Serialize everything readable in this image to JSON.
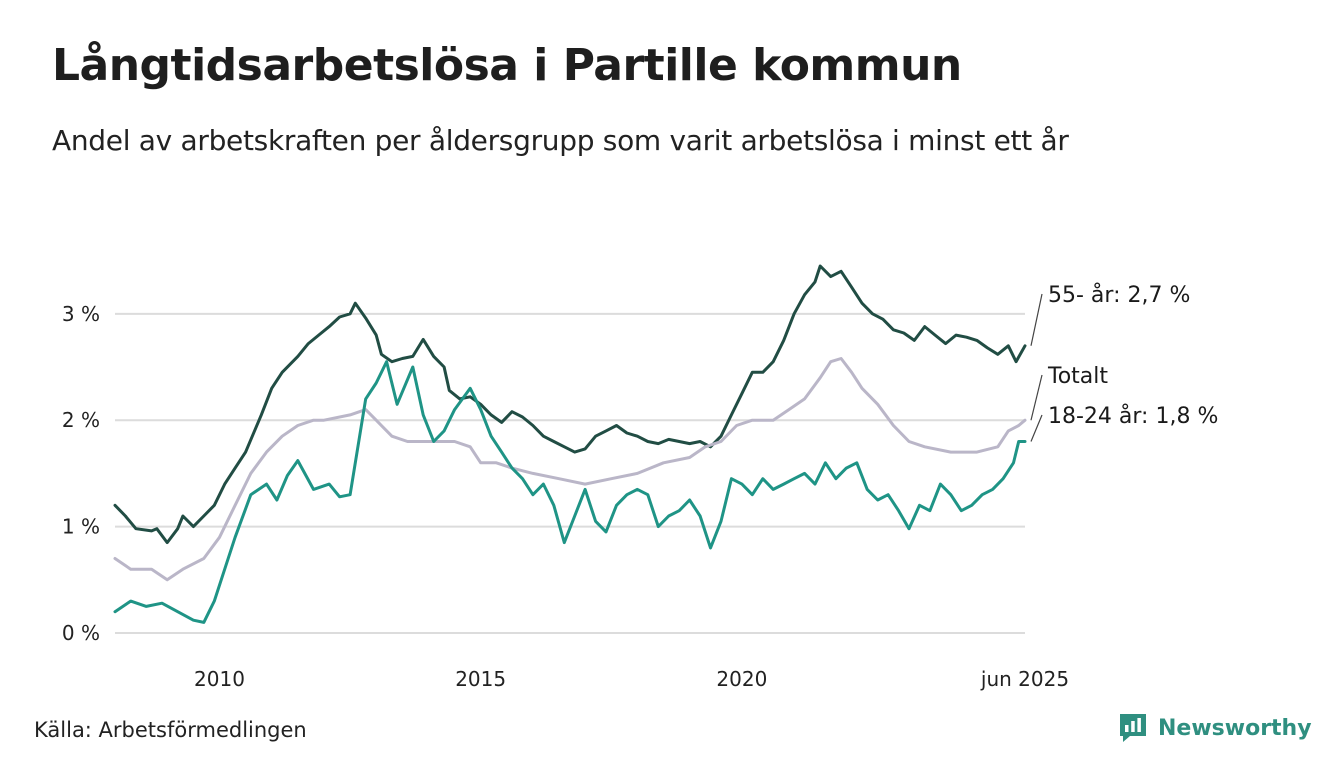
{
  "title": "Långtidsarbetslösa i Partille kommun",
  "subtitle": "Andel av arbetskraften per åldersgrupp som varit arbetslösa i minst ett år",
  "source": "Källa: Arbetsförmedlingen",
  "brand": "Newsworthy",
  "chart_data": {
    "type": "line",
    "title": "Långtidsarbetslösa i Partille kommun",
    "subtitle": "Andel av arbetskraften per åldersgrupp som varit arbetslösa i minst ett år",
    "xlabel": "",
    "ylabel": "",
    "x_range": [
      2008.0,
      2025.42
    ],
    "ylim": [
      0,
      3.6
    ],
    "y_ticks": [
      0,
      1,
      2,
      3
    ],
    "y_tick_labels": [
      "0 %",
      "1 %",
      "2 %",
      "3 %"
    ],
    "x_ticks": [
      2010,
      2015,
      2020,
      2025.42
    ],
    "x_tick_labels": [
      "2010",
      "2015",
      "2020",
      "jun 2025"
    ],
    "grid": "horizontal",
    "legend": "direct labels at right end of lines",
    "series": [
      {
        "name": "55- år",
        "label": "55- år: 2,7 %",
        "color": "#214d44",
        "points": [
          [
            2008.0,
            1.2
          ],
          [
            2008.2,
            1.1
          ],
          [
            2008.4,
            0.98
          ],
          [
            2008.7,
            0.96
          ],
          [
            2008.8,
            0.98
          ],
          [
            2009.0,
            0.85
          ],
          [
            2009.2,
            0.98
          ],
          [
            2009.3,
            1.1
          ],
          [
            2009.5,
            1.0
          ],
          [
            2009.7,
            1.1
          ],
          [
            2009.9,
            1.2
          ],
          [
            2010.1,
            1.4
          ],
          [
            2010.3,
            1.55
          ],
          [
            2010.5,
            1.7
          ],
          [
            2010.8,
            2.05
          ],
          [
            2011.0,
            2.3
          ],
          [
            2011.2,
            2.45
          ],
          [
            2011.5,
            2.6
          ],
          [
            2011.7,
            2.72
          ],
          [
            2011.9,
            2.8
          ],
          [
            2012.1,
            2.88
          ],
          [
            2012.3,
            2.97
          ],
          [
            2012.5,
            3.0
          ],
          [
            2012.6,
            3.1
          ],
          [
            2012.8,
            2.96
          ],
          [
            2013.0,
            2.8
          ],
          [
            2013.1,
            2.62
          ],
          [
            2013.3,
            2.55
          ],
          [
            2013.5,
            2.58
          ],
          [
            2013.7,
            2.6
          ],
          [
            2013.9,
            2.76
          ],
          [
            2014.1,
            2.6
          ],
          [
            2014.3,
            2.5
          ],
          [
            2014.4,
            2.28
          ],
          [
            2014.6,
            2.2
          ],
          [
            2014.8,
            2.22
          ],
          [
            2015.0,
            2.15
          ],
          [
            2015.2,
            2.05
          ],
          [
            2015.4,
            1.98
          ],
          [
            2015.6,
            2.08
          ],
          [
            2015.8,
            2.03
          ],
          [
            2016.0,
            1.95
          ],
          [
            2016.2,
            1.85
          ],
          [
            2016.4,
            1.8
          ],
          [
            2016.6,
            1.75
          ],
          [
            2016.8,
            1.7
          ],
          [
            2017.0,
            1.73
          ],
          [
            2017.2,
            1.85
          ],
          [
            2017.4,
            1.9
          ],
          [
            2017.6,
            1.95
          ],
          [
            2017.8,
            1.88
          ],
          [
            2018.0,
            1.85
          ],
          [
            2018.2,
            1.8
          ],
          [
            2018.4,
            1.78
          ],
          [
            2018.6,
            1.82
          ],
          [
            2018.8,
            1.8
          ],
          [
            2019.0,
            1.78
          ],
          [
            2019.2,
            1.8
          ],
          [
            2019.4,
            1.75
          ],
          [
            2019.6,
            1.85
          ],
          [
            2019.8,
            2.05
          ],
          [
            2020.0,
            2.25
          ],
          [
            2020.2,
            2.45
          ],
          [
            2020.4,
            2.45
          ],
          [
            2020.6,
            2.55
          ],
          [
            2020.8,
            2.75
          ],
          [
            2021.0,
            3.0
          ],
          [
            2021.2,
            3.18
          ],
          [
            2021.4,
            3.3
          ],
          [
            2021.5,
            3.45
          ],
          [
            2021.7,
            3.35
          ],
          [
            2021.9,
            3.4
          ],
          [
            2022.1,
            3.25
          ],
          [
            2022.3,
            3.1
          ],
          [
            2022.5,
            3.0
          ],
          [
            2022.7,
            2.95
          ],
          [
            2022.9,
            2.85
          ],
          [
            2023.1,
            2.82
          ],
          [
            2023.3,
            2.75
          ],
          [
            2023.5,
            2.88
          ],
          [
            2023.7,
            2.8
          ],
          [
            2023.9,
            2.72
          ],
          [
            2024.1,
            2.8
          ],
          [
            2024.3,
            2.78
          ],
          [
            2024.5,
            2.75
          ],
          [
            2024.7,
            2.68
          ],
          [
            2024.9,
            2.62
          ],
          [
            2025.1,
            2.7
          ],
          [
            2025.25,
            2.55
          ],
          [
            2025.42,
            2.7
          ]
        ]
      },
      {
        "name": "Totalt",
        "label": "Totalt",
        "color": "#bab6c8",
        "points": [
          [
            2008.0,
            0.7
          ],
          [
            2008.3,
            0.6
          ],
          [
            2008.7,
            0.6
          ],
          [
            2009.0,
            0.5
          ],
          [
            2009.3,
            0.6
          ],
          [
            2009.7,
            0.7
          ],
          [
            2010.0,
            0.9
          ],
          [
            2010.3,
            1.2
          ],
          [
            2010.6,
            1.5
          ],
          [
            2010.9,
            1.7
          ],
          [
            2011.2,
            1.85
          ],
          [
            2011.5,
            1.95
          ],
          [
            2011.8,
            2.0
          ],
          [
            2012.0,
            2.0
          ],
          [
            2012.5,
            2.05
          ],
          [
            2012.8,
            2.1
          ],
          [
            2013.0,
            2.0
          ],
          [
            2013.3,
            1.85
          ],
          [
            2013.6,
            1.8
          ],
          [
            2014.0,
            1.8
          ],
          [
            2014.5,
            1.8
          ],
          [
            2014.8,
            1.75
          ],
          [
            2015.0,
            1.6
          ],
          [
            2015.3,
            1.6
          ],
          [
            2015.6,
            1.55
          ],
          [
            2016.0,
            1.5
          ],
          [
            2016.5,
            1.45
          ],
          [
            2017.0,
            1.4
          ],
          [
            2017.5,
            1.45
          ],
          [
            2018.0,
            1.5
          ],
          [
            2018.5,
            1.6
          ],
          [
            2019.0,
            1.65
          ],
          [
            2019.3,
            1.75
          ],
          [
            2019.6,
            1.8
          ],
          [
            2019.9,
            1.95
          ],
          [
            2020.2,
            2.0
          ],
          [
            2020.6,
            2.0
          ],
          [
            2020.9,
            2.1
          ],
          [
            2021.2,
            2.2
          ],
          [
            2021.5,
            2.4
          ],
          [
            2021.7,
            2.55
          ],
          [
            2021.9,
            2.58
          ],
          [
            2022.1,
            2.45
          ],
          [
            2022.3,
            2.3
          ],
          [
            2022.6,
            2.15
          ],
          [
            2022.9,
            1.95
          ],
          [
            2023.2,
            1.8
          ],
          [
            2023.5,
            1.75
          ],
          [
            2024.0,
            1.7
          ],
          [
            2024.5,
            1.7
          ],
          [
            2024.9,
            1.75
          ],
          [
            2025.1,
            1.9
          ],
          [
            2025.3,
            1.95
          ],
          [
            2025.42,
            2.0
          ]
        ]
      },
      {
        "name": "18-24 år",
        "label": "18-24 år: 1,8 %",
        "color": "#1f9486",
        "points": [
          [
            2008.0,
            0.2
          ],
          [
            2008.3,
            0.3
          ],
          [
            2008.6,
            0.25
          ],
          [
            2008.9,
            0.28
          ],
          [
            2009.2,
            0.2
          ],
          [
            2009.5,
            0.12
          ],
          [
            2009.7,
            0.1
          ],
          [
            2009.9,
            0.3
          ],
          [
            2010.1,
            0.6
          ],
          [
            2010.3,
            0.9
          ],
          [
            2010.6,
            1.3
          ],
          [
            2010.9,
            1.4
          ],
          [
            2011.1,
            1.25
          ],
          [
            2011.3,
            1.48
          ],
          [
            2011.5,
            1.62
          ],
          [
            2011.8,
            1.35
          ],
          [
            2012.1,
            1.4
          ],
          [
            2012.3,
            1.28
          ],
          [
            2012.5,
            1.3
          ],
          [
            2012.8,
            2.2
          ],
          [
            2013.0,
            2.35
          ],
          [
            2013.2,
            2.55
          ],
          [
            2013.4,
            2.15
          ],
          [
            2013.7,
            2.5
          ],
          [
            2013.9,
            2.05
          ],
          [
            2014.1,
            1.8
          ],
          [
            2014.3,
            1.9
          ],
          [
            2014.5,
            2.1
          ],
          [
            2014.8,
            2.3
          ],
          [
            2015.0,
            2.1
          ],
          [
            2015.2,
            1.85
          ],
          [
            2015.4,
            1.7
          ],
          [
            2015.6,
            1.55
          ],
          [
            2015.8,
            1.45
          ],
          [
            2016.0,
            1.3
          ],
          [
            2016.2,
            1.4
          ],
          [
            2016.4,
            1.2
          ],
          [
            2016.6,
            0.85
          ],
          [
            2016.8,
            1.1
          ],
          [
            2017.0,
            1.35
          ],
          [
            2017.2,
            1.05
          ],
          [
            2017.4,
            0.95
          ],
          [
            2017.6,
            1.2
          ],
          [
            2017.8,
            1.3
          ],
          [
            2018.0,
            1.35
          ],
          [
            2018.2,
            1.3
          ],
          [
            2018.4,
            1.0
          ],
          [
            2018.6,
            1.1
          ],
          [
            2018.8,
            1.15
          ],
          [
            2019.0,
            1.25
          ],
          [
            2019.2,
            1.1
          ],
          [
            2019.4,
            0.8
          ],
          [
            2019.6,
            1.05
          ],
          [
            2019.8,
            1.45
          ],
          [
            2020.0,
            1.4
          ],
          [
            2020.2,
            1.3
          ],
          [
            2020.4,
            1.45
          ],
          [
            2020.6,
            1.35
          ],
          [
            2020.8,
            1.4
          ],
          [
            2021.0,
            1.45
          ],
          [
            2021.2,
            1.5
          ],
          [
            2021.4,
            1.4
          ],
          [
            2021.6,
            1.6
          ],
          [
            2021.8,
            1.45
          ],
          [
            2022.0,
            1.55
          ],
          [
            2022.2,
            1.6
          ],
          [
            2022.4,
            1.35
          ],
          [
            2022.6,
            1.25
          ],
          [
            2022.8,
            1.3
          ],
          [
            2023.0,
            1.15
          ],
          [
            2023.2,
            0.98
          ],
          [
            2023.4,
            1.2
          ],
          [
            2023.6,
            1.15
          ],
          [
            2023.8,
            1.4
          ],
          [
            2024.0,
            1.3
          ],
          [
            2024.2,
            1.15
          ],
          [
            2024.4,
            1.2
          ],
          [
            2024.6,
            1.3
          ],
          [
            2024.8,
            1.35
          ],
          [
            2025.0,
            1.45
          ],
          [
            2025.2,
            1.6
          ],
          [
            2025.3,
            1.8
          ],
          [
            2025.42,
            1.8
          ]
        ]
      }
    ]
  }
}
